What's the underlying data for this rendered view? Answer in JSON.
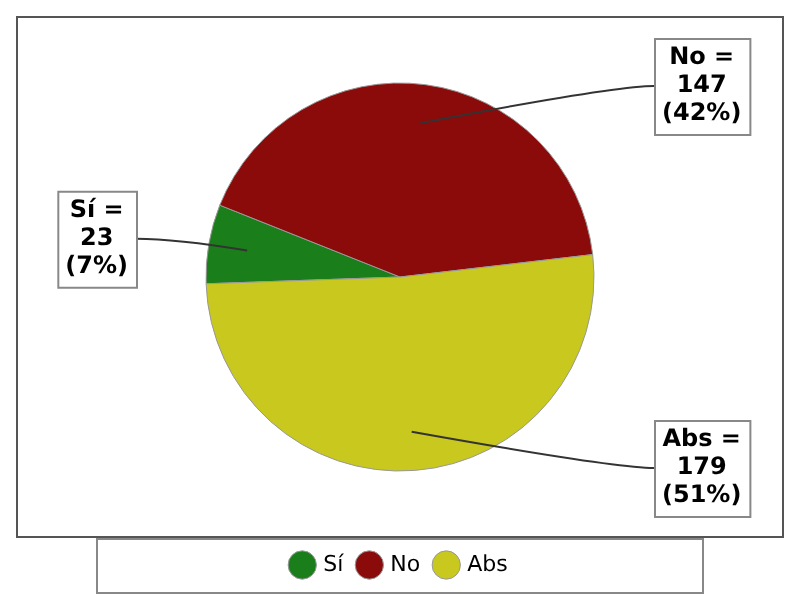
{
  "chart_data": {
    "type": "pie",
    "categories": [
      "Sí",
      "No",
      "Abs"
    ],
    "values": [
      23,
      147,
      179
    ],
    "colors": [
      "#1a7f1a",
      "#8b0a0a",
      "#c8c81e"
    ],
    "value_labels": [
      "Sí =\n23\n(7%)",
      "No =\n147\n(42%)",
      "Abs =\n179\n(51%)"
    ],
    "legend": "bottom"
  }
}
